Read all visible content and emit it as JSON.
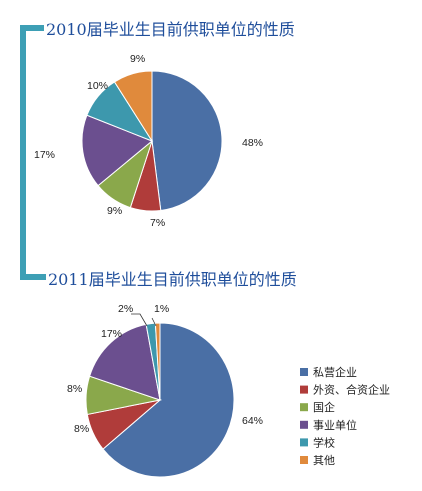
{
  "chart_data": [
    {
      "type": "pie",
      "title": "2010届毕业生目前供职单位的性质",
      "categories": [
        "私营企业",
        "外资、合资企业",
        "国企",
        "事业单位",
        "学校",
        "其他"
      ],
      "values": [
        48,
        7,
        9,
        17,
        10,
        9
      ],
      "labels": [
        "48%",
        "7%",
        "9%",
        "17%",
        "10%",
        "9%"
      ],
      "colors": [
        "#4a6fa5",
        "#b03c3a",
        "#8aa84b",
        "#6b4f8f",
        "#3d98ad",
        "#e08a3c"
      ]
    },
    {
      "type": "pie",
      "title": "2011届毕业生目前供职单位的性质",
      "categories": [
        "私营企业",
        "外资、合资企业",
        "国企",
        "事业单位",
        "学校",
        "其他"
      ],
      "values": [
        64,
        8,
        8,
        17,
        2,
        1
      ],
      "labels": [
        "64%",
        "8%",
        "8%",
        "17%",
        "2%",
        "1%"
      ],
      "colors": [
        "#4a6fa5",
        "#b03c3a",
        "#8aa84b",
        "#6b4f8f",
        "#3d98ad",
        "#e08a3c"
      ],
      "legend_position": "right"
    }
  ]
}
